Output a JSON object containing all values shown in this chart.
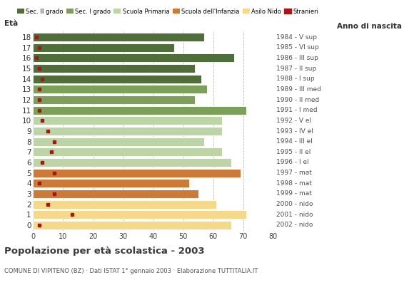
{
  "ages": [
    18,
    17,
    16,
    15,
    14,
    13,
    12,
    11,
    10,
    9,
    8,
    7,
    6,
    5,
    4,
    3,
    2,
    1,
    0
  ],
  "right_labels": [
    "1984 - V sup",
    "1985 - VI sup",
    "1986 - III sup",
    "1987 - II sup",
    "1988 - I sup",
    "1989 - III med",
    "1990 - II med",
    "1991 - I med",
    "1992 - V el",
    "1993 - IV el",
    "1994 - III el",
    "1995 - II el",
    "1996 - I el",
    "1997 - mat",
    "1998 - mat",
    "1999 - mat",
    "2000 - nido",
    "2001 - nido",
    "2002 - nido"
  ],
  "bar_values": [
    57,
    47,
    67,
    54,
    56,
    58,
    54,
    71,
    63,
    63,
    57,
    63,
    66,
    69,
    52,
    55,
    61,
    71,
    66
  ],
  "bar_colors": [
    "#506e3a",
    "#506e3a",
    "#506e3a",
    "#506e3a",
    "#506e3a",
    "#7ca05a",
    "#7ca05a",
    "#7ca05a",
    "#bdd4a6",
    "#bdd4a6",
    "#bdd4a6",
    "#bdd4a6",
    "#bdd4a6",
    "#cc7a38",
    "#cc7a38",
    "#cc7a38",
    "#f5d98a",
    "#f5d98a",
    "#f5d98a"
  ],
  "stranieri_values": [
    1,
    2,
    1,
    2,
    3,
    2,
    2,
    2,
    3,
    5,
    7,
    6,
    3,
    7,
    2,
    7,
    5,
    13,
    2
  ],
  "stranieri_color": "#aa1515",
  "legend_labels": [
    "Sec. II grado",
    "Sec. I grado",
    "Scuola Primaria",
    "Scuola dell'Infanzia",
    "Asilo Nido",
    "Stranieri"
  ],
  "legend_colors": [
    "#506e3a",
    "#7ca05a",
    "#bdd4a6",
    "#cc7a38",
    "#f5d98a",
    "#aa1515"
  ],
  "title": "Popolazione per età scolastica - 2003",
  "subtitle": "COMUNE DI VIPITENO (BZ) · Dati ISTAT 1° gennaio 2003 · Elaborazione TUTTITALIA.IT",
  "xlabel_eta": "Età",
  "xlabel_anno": "Anno di nascita",
  "xlim": [
    0,
    80
  ],
  "xticks": [
    0,
    10,
    20,
    30,
    40,
    50,
    60,
    70,
    80
  ],
  "background_color": "#ffffff",
  "grid_color": "#bbbbbb"
}
